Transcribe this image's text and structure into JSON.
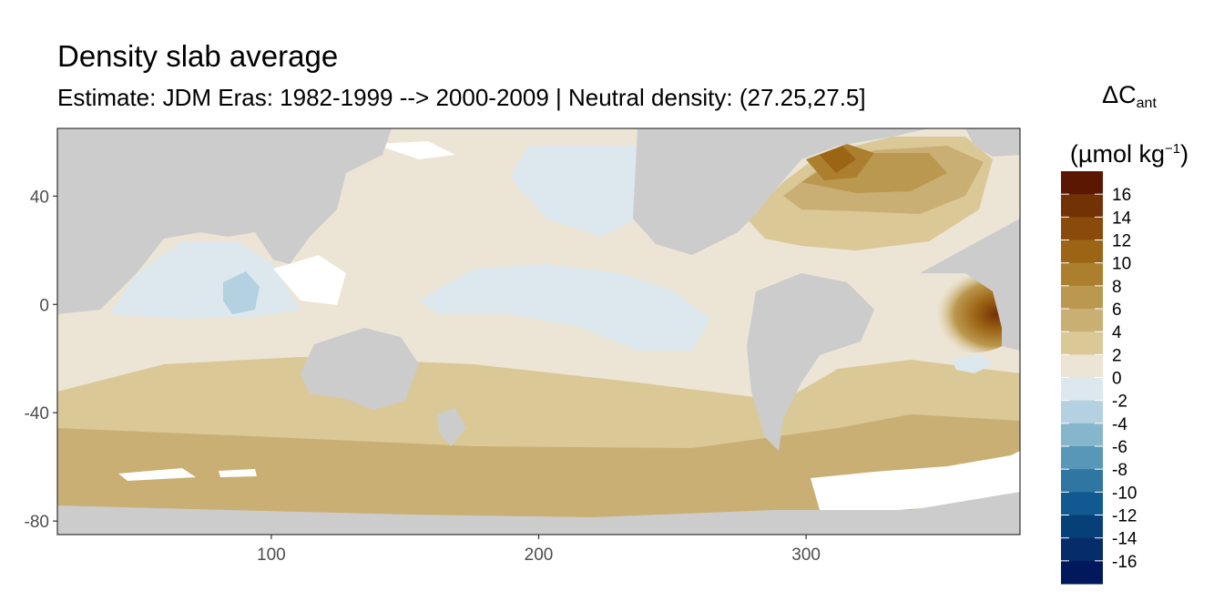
{
  "chart_data": {
    "type": "heatmap",
    "title": "Density slab average",
    "subtitle": "Estimate: JDM Eras: 1982-1999 --> 2000-2009 | Neutral density: (27.25,27.5]",
    "legend": {
      "title_symbol": "ΔC",
      "title_subscript": "ant",
      "unit_open": "(µmol kg",
      "unit_power": "−1",
      "unit_close": ")",
      "placement": "right",
      "breaks": [
        16,
        14,
        12,
        10,
        8,
        6,
        4,
        2,
        0,
        -2,
        -4,
        -6,
        -8,
        -10,
        -12,
        -14,
        -16
      ],
      "colors": [
        "#5c1703",
        "#733106",
        "#8a4a0b",
        "#9c6415",
        "#ac7f2e",
        "#bb984f",
        "#c9af73",
        "#dac896",
        "#ece4d4",
        "#dce8ed",
        "#b3d1e0",
        "#86b6cc",
        "#5897b8",
        "#2f76a3",
        "#115a91",
        "#073f78",
        "#062c6a",
        "#01185c"
      ]
    },
    "x_axis": {
      "ticks": [
        100,
        200,
        300
      ],
      "range": [
        20,
        380
      ],
      "label": ""
    },
    "y_axis": {
      "ticks": [
        40,
        0,
        -40,
        -80
      ],
      "range": [
        -85,
        65
      ],
      "label": ""
    },
    "colors": {
      "land": "#cccccc",
      "nodata": "#ffffff",
      "panel_border": "#333333"
    }
  }
}
